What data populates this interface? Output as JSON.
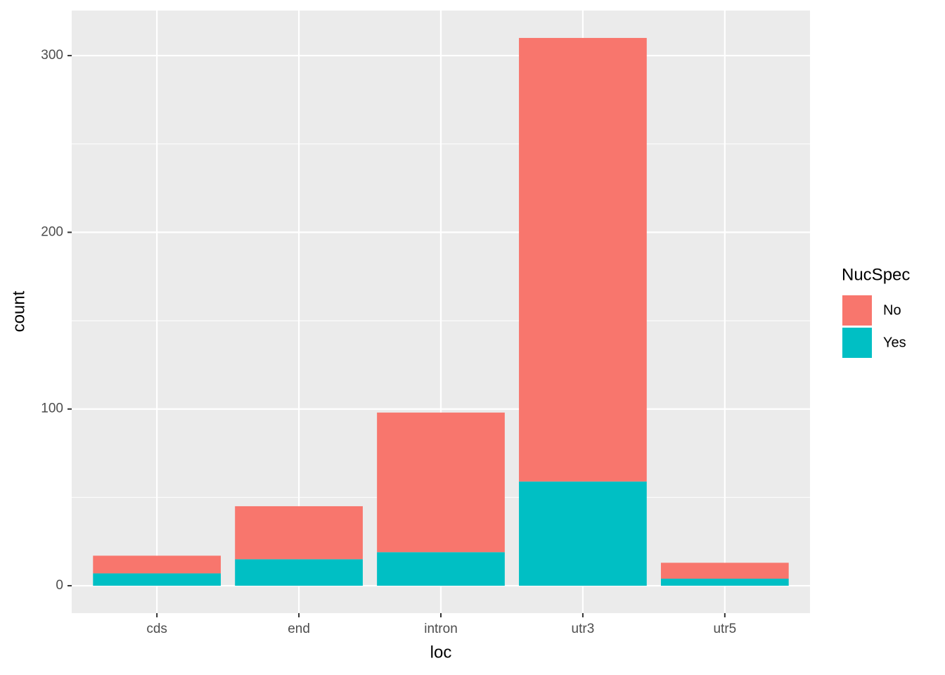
{
  "chart_data": {
    "type": "stacked_bar",
    "x_label": "loc",
    "y_label": "count",
    "categories": [
      "cds",
      "end",
      "intron",
      "utr3",
      "utr5"
    ],
    "series": [
      {
        "name": "No",
        "color": "#F8766D",
        "values": [
          10,
          30,
          79,
          251,
          9
        ]
      },
      {
        "name": "Yes",
        "color": "#00BFC4",
        "values": [
          7,
          15,
          19,
          59,
          4
        ]
      }
    ],
    "legend_title": "NucSpec",
    "ylim": [
      -15.5,
      325.5
    ],
    "yticks": [
      0,
      100,
      200,
      300
    ],
    "y_minor_ticks": [
      50,
      150,
      250
    ],
    "grid": true,
    "legend": "right"
  }
}
